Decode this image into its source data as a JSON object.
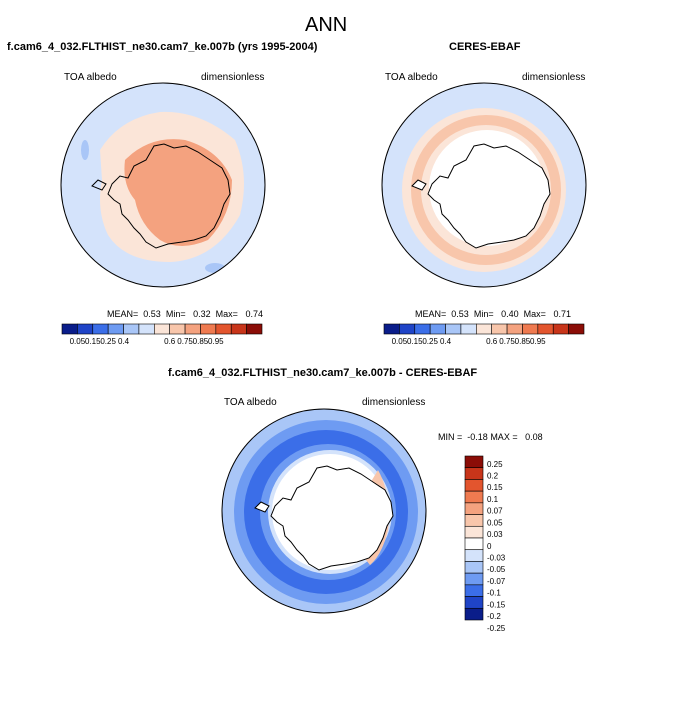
{
  "figure": {
    "title": "ANN"
  },
  "panels": [
    {
      "title": "f.cam6_4_032.FLTHIST_ne30.cam7_ke.007b (yrs 1995-2004)",
      "variable": "TOA albedo",
      "units": "dimensionless",
      "stats": {
        "mean_label": "MEAN=",
        "mean": "0.53",
        "min_label": "Min=",
        "min": "0.32",
        "max_label": "Max=",
        "max": "0.74"
      }
    },
    {
      "title": "CERES-EBAF",
      "variable": "TOA albedo",
      "units": "dimensionless",
      "stats": {
        "mean_label": "MEAN=",
        "mean": "0.53",
        "min_label": "Min=",
        "min": "0.40",
        "max_label": "Max=",
        "max": "0.71"
      }
    },
    {
      "title": "f.cam6_4_032.FLTHIST_ne30.cam7_ke.007b - CERES-EBAF",
      "variable": "TOA albedo",
      "units": "dimensionless",
      "stats": {
        "min_label": "MIN =",
        "min": "-0.18",
        "max_label": "MAX =",
        "max": "0.08"
      }
    }
  ],
  "colorbars": {
    "absolute": {
      "colors": [
        "#0a1d8a",
        "#1f44c7",
        "#3b6ee8",
        "#6e9bf2",
        "#a9c6f7",
        "#d4e3fb",
        "#fbe5d8",
        "#f8c6ab",
        "#f4a27f",
        "#ef7a50",
        "#e3552e",
        "#c8351a",
        "#8b0d07"
      ],
      "ticks": [
        "0.05",
        "0.15",
        "0.25",
        "0.4",
        "0.6",
        "0.75",
        "0.85",
        "0.95"
      ]
    },
    "difference": {
      "colors": [
        "#8b0d07",
        "#c8351a",
        "#e3552e",
        "#ef7a50",
        "#f4a27f",
        "#f8c6ab",
        "#fbe5d8",
        "#ffffff",
        "#d4e3fb",
        "#a9c6f7",
        "#6e9bf2",
        "#3b6ee8",
        "#1f44c7",
        "#0a1d8a"
      ],
      "ticks": [
        "0.25",
        "0.2",
        "0.15",
        "0.1",
        "0.07",
        "0.05",
        "0.03",
        "0",
        "-0.03",
        "-0.05",
        "-0.07",
        "-0.1",
        "-0.15",
        "-0.2",
        "-0.25"
      ]
    }
  }
}
